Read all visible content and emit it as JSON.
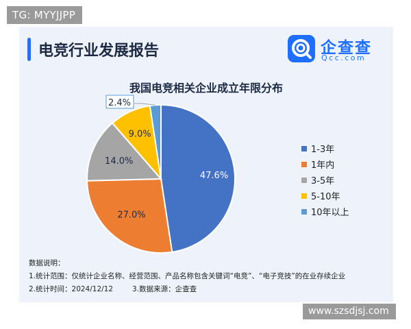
{
  "badge": "TG: MYYJJPP",
  "header": {
    "title": "电竞行业发展报告",
    "logo_cn": "企查查",
    "logo_en": "Qcc.com"
  },
  "chart_data": {
    "type": "pie",
    "title": "我国电竞相关企业成立年限分布",
    "start_angle_deg": 0,
    "direction": "clockwise",
    "legend_position": "right",
    "slices": [
      {
        "label": "1-3年",
        "value": 47.6,
        "label_text": "47.6%",
        "color": "#4472c4"
      },
      {
        "label": "1年内",
        "value": 27.0,
        "label_text": "27.0%",
        "color": "#ed7d31"
      },
      {
        "label": "3-5年",
        "value": 14.0,
        "label_text": "14.0%",
        "color": "#a5a5a5"
      },
      {
        "label": "5-10年",
        "value": 9.0,
        "label_text": "9.0%",
        "color": "#ffc000"
      },
      {
        "label": "10年以上",
        "value": 2.4,
        "label_text": "2.4%",
        "color": "#5b9bd5"
      }
    ]
  },
  "notes": {
    "heading": "数据说明：",
    "line1": "1.统计范围：仅统计企业名称、经营范围、产品名称包含关键词“电竞”、“电子竞技”的在业存续企业",
    "line2a": "2.统计时间：2024/12/12",
    "line2b": "3.数据来源：企查查"
  },
  "watermark": "www.szsdjsj.com"
}
